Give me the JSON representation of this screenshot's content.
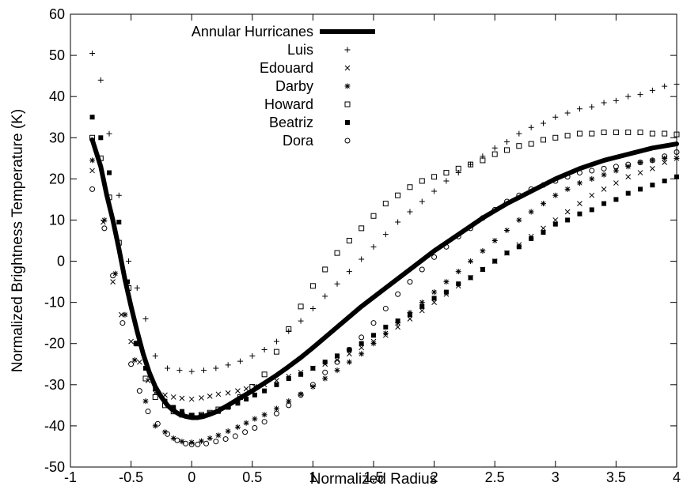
{
  "chart_data": {
    "type": "scatter",
    "title": "",
    "xlabel": "Normalized Radius",
    "ylabel": "Normalized Brightness Temperature (K)",
    "xlim": [
      -1,
      4
    ],
    "ylim": [
      -50,
      60
    ],
    "xticks": [
      -1,
      -0.5,
      0,
      0.5,
      1,
      1.5,
      2,
      2.5,
      3,
      3.5,
      4
    ],
    "yticks": [
      -50,
      -40,
      -30,
      -20,
      -10,
      0,
      10,
      20,
      30,
      40,
      50,
      60
    ],
    "legend_position": "top-center",
    "colors": {
      "ink": "#000000"
    },
    "series": [
      {
        "name": "Annular Hurricanes",
        "marker": "line",
        "x": [
          -0.82,
          -0.75,
          -0.7,
          -0.65,
          -0.6,
          -0.55,
          -0.5,
          -0.45,
          -0.4,
          -0.35,
          -0.3,
          -0.25,
          -0.2,
          -0.15,
          -0.1,
          -0.05,
          0,
          0.05,
          0.1,
          0.15,
          0.2,
          0.3,
          0.4,
          0.5,
          0.6,
          0.7,
          0.8,
          0.9,
          1.0,
          1.2,
          1.4,
          1.6,
          1.8,
          2.0,
          2.2,
          2.4,
          2.6,
          2.8,
          3.0,
          3.2,
          3.4,
          3.6,
          3.8,
          4.0
        ],
        "y": [
          29.5,
          23,
          16,
          10,
          3,
          -4.5,
          -11,
          -17,
          -22.5,
          -27,
          -30.5,
          -33,
          -35,
          -36.3,
          -37.2,
          -37.7,
          -38,
          -38,
          -37.7,
          -37.2,
          -36.6,
          -35,
          -33.2,
          -31.5,
          -29.6,
          -27.7,
          -25.6,
          -23.4,
          -21,
          -16,
          -11,
          -6.5,
          -2,
          2.5,
          6.5,
          10.5,
          14,
          17,
          20,
          22.5,
          24.5,
          26,
          27.5,
          28.5
        ]
      },
      {
        "name": "Luis",
        "marker": "plus",
        "x": [
          -0.82,
          -0.75,
          -0.68,
          -0.6,
          -0.52,
          -0.45,
          -0.38,
          -0.3,
          -0.2,
          -0.1,
          0,
          0.1,
          0.2,
          0.3,
          0.4,
          0.5,
          0.6,
          0.7,
          0.8,
          0.9,
          1.0,
          1.1,
          1.2,
          1.3,
          1.4,
          1.5,
          1.6,
          1.7,
          1.8,
          1.9,
          2.0,
          2.1,
          2.2,
          2.3,
          2.4,
          2.5,
          2.6,
          2.7,
          2.8,
          2.9,
          3.0,
          3.1,
          3.2,
          3.3,
          3.4,
          3.5,
          3.6,
          3.7,
          3.8,
          3.9,
          4.0
        ],
        "y": [
          50.5,
          44,
          31,
          16,
          0,
          -6.5,
          -14,
          -23,
          -26,
          -26.5,
          -26.8,
          -26.5,
          -26,
          -25.2,
          -24.3,
          -23,
          -21.5,
          -19.5,
          -17,
          -14.5,
          -11.5,
          -8.5,
          -5.5,
          -2.5,
          0.5,
          3.5,
          6.5,
          9.5,
          12,
          14.5,
          17,
          19.5,
          21.5,
          23.5,
          25.5,
          27.5,
          29,
          31,
          32.5,
          33.5,
          35,
          36,
          37,
          37.5,
          38.5,
          39,
          40,
          40.5,
          41.5,
          42.5,
          43
        ]
      },
      {
        "name": "Edouard",
        "marker": "cross",
        "x": [
          -0.82,
          -0.73,
          -0.65,
          -0.58,
          -0.5,
          -0.43,
          -0.36,
          -0.3,
          -0.22,
          -0.15,
          -0.08,
          0,
          0.08,
          0.15,
          0.22,
          0.3,
          0.38,
          0.45,
          0.52,
          0.6,
          0.7,
          0.8,
          0.9,
          1.0,
          1.1,
          1.2,
          1.3,
          1.4,
          1.5,
          1.6,
          1.7,
          1.8,
          1.9,
          2.0,
          2.1,
          2.2,
          2.3,
          2.4,
          2.5,
          2.6,
          2.7,
          2.8,
          2.9,
          3.0,
          3.1,
          3.2,
          3.3,
          3.4,
          3.5,
          3.6,
          3.7,
          3.8,
          3.9,
          4.0
        ],
        "y": [
          22,
          9.5,
          -5,
          -13,
          -19.5,
          -24.5,
          -29,
          -32,
          -32.5,
          -33,
          -33.3,
          -33.5,
          -33.2,
          -32.8,
          -32.3,
          -32,
          -31.5,
          -31,
          -30.5,
          -30,
          -29,
          -28,
          -27,
          -26,
          -25,
          -24,
          -22.5,
          -21,
          -19.5,
          -18,
          -16,
          -14,
          -12,
          -10,
          -8,
          -6,
          -4,
          -2,
          0,
          2,
          4,
          6,
          8,
          10,
          12,
          14,
          16,
          17.5,
          19,
          20.5,
          21.5,
          22.5,
          24,
          25
        ]
      },
      {
        "name": "Darby",
        "marker": "star",
        "x": [
          -0.82,
          -0.72,
          -0.63,
          -0.55,
          -0.47,
          -0.38,
          -0.3,
          -0.22,
          -0.15,
          -0.08,
          0,
          0.08,
          0.15,
          0.22,
          0.3,
          0.38,
          0.45,
          0.52,
          0.6,
          0.7,
          0.8,
          0.9,
          1.0,
          1.1,
          1.2,
          1.3,
          1.4,
          1.5,
          1.6,
          1.7,
          1.8,
          1.9,
          2.0,
          2.1,
          2.2,
          2.3,
          2.4,
          2.5,
          2.6,
          2.7,
          2.8,
          2.9,
          3.0,
          3.1,
          3.2,
          3.3,
          3.4,
          3.5,
          3.6,
          3.7,
          3.8,
          3.9,
          4.0
        ],
        "y": [
          24.5,
          10,
          -3,
          -13,
          -24,
          -34,
          -40,
          -41.5,
          -43,
          -43.8,
          -44,
          -43.7,
          -43,
          -42.3,
          -41.3,
          -40.3,
          -39.3,
          -38.3,
          -37.3,
          -35.8,
          -34,
          -32.3,
          -30.5,
          -28.5,
          -26.5,
          -24.5,
          -22.5,
          -20,
          -17.5,
          -15,
          -12.5,
          -10,
          -7.5,
          -5,
          -2.5,
          0,
          2.5,
          5,
          7.5,
          10,
          12,
          14,
          16,
          17.5,
          19,
          20,
          21,
          22,
          23,
          24,
          24.5,
          25,
          25
        ]
      },
      {
        "name": "Howard",
        "marker": "square",
        "x": [
          -0.82,
          -0.75,
          -0.68,
          -0.6,
          -0.52,
          -0.45,
          -0.38,
          -0.3,
          -0.22,
          -0.15,
          -0.08,
          0,
          0.08,
          0.15,
          0.22,
          0.3,
          0.4,
          0.5,
          0.6,
          0.7,
          0.8,
          0.9,
          1.0,
          1.1,
          1.2,
          1.3,
          1.4,
          1.5,
          1.6,
          1.7,
          1.8,
          1.9,
          2.0,
          2.1,
          2.2,
          2.3,
          2.4,
          2.5,
          2.6,
          2.7,
          2.8,
          2.9,
          3.0,
          3.1,
          3.2,
          3.3,
          3.4,
          3.5,
          3.6,
          3.7,
          3.8,
          3.9,
          4.0
        ],
        "y": [
          30,
          25,
          15.5,
          4.5,
          -6.5,
          -20,
          -28.5,
          -33,
          -35,
          -36.5,
          -37.3,
          -37.5,
          -37.3,
          -36.8,
          -36,
          -35.3,
          -33,
          -30.5,
          -27.5,
          -22,
          -16.5,
          -11,
          -6,
          -2,
          2,
          5,
          8,
          11,
          14,
          16,
          18,
          19.5,
          20.5,
          21.5,
          22.5,
          23.5,
          24.5,
          26,
          27,
          28,
          28.5,
          29.5,
          30,
          30.5,
          31,
          31,
          31.3,
          31.3,
          31.3,
          31.3,
          31,
          31,
          30.8
        ]
      },
      {
        "name": "Beatriz",
        "marker": "filled-square",
        "x": [
          -0.82,
          -0.75,
          -0.68,
          -0.6,
          -0.53,
          -0.46,
          -0.38,
          -0.3,
          -0.22,
          -0.15,
          -0.08,
          0,
          0.08,
          0.15,
          0.22,
          0.3,
          0.38,
          0.45,
          0.52,
          0.6,
          0.7,
          0.8,
          0.9,
          1.0,
          1.1,
          1.2,
          1.3,
          1.4,
          1.5,
          1.6,
          1.7,
          1.8,
          1.9,
          2.0,
          2.1,
          2.2,
          2.3,
          2.4,
          2.5,
          2.6,
          2.7,
          2.8,
          2.9,
          3.0,
          3.1,
          3.2,
          3.3,
          3.4,
          3.5,
          3.6,
          3.7,
          3.8,
          3.9,
          4.0
        ],
        "y": [
          35,
          30,
          21.5,
          9.5,
          -5,
          -20,
          -26,
          -31,
          -34,
          -35.5,
          -36.5,
          -37.5,
          -37.5,
          -37,
          -36.5,
          -35.5,
          -34.5,
          -33.5,
          -32.5,
          -31.5,
          -30,
          -28.5,
          -27.5,
          -26,
          -24.5,
          -23,
          -21.5,
          -20,
          -18,
          -16,
          -14.5,
          -13,
          -11,
          -9,
          -7.5,
          -5.5,
          -4,
          -2,
          0,
          2,
          3.5,
          5.5,
          7,
          9,
          10,
          11.5,
          12.5,
          14,
          15,
          16.5,
          17.5,
          18.5,
          19.5,
          20.5
        ]
      },
      {
        "name": "Dora",
        "marker": "circle",
        "x": [
          -0.82,
          -0.72,
          -0.65,
          -0.57,
          -0.5,
          -0.43,
          -0.36,
          -0.28,
          -0.2,
          -0.12,
          -0.05,
          0,
          0.05,
          0.12,
          0.2,
          0.28,
          0.36,
          0.44,
          0.52,
          0.6,
          0.7,
          0.8,
          0.9,
          1.0,
          1.1,
          1.2,
          1.3,
          1.4,
          1.5,
          1.6,
          1.7,
          1.8,
          1.9,
          2.0,
          2.1,
          2.2,
          2.3,
          2.4,
          2.5,
          2.6,
          2.7,
          2.8,
          2.9,
          3.0,
          3.1,
          3.2,
          3.3,
          3.4,
          3.5,
          3.6,
          3.7,
          3.8,
          3.9,
          4.0
        ],
        "y": [
          17.5,
          8,
          -3.5,
          -15,
          -25,
          -31.5,
          -36.5,
          -39.5,
          -42,
          -43.5,
          -44.3,
          -44.5,
          -44.5,
          -44.3,
          -43.8,
          -43.2,
          -42.5,
          -41.5,
          -40.5,
          -39,
          -37,
          -35,
          -32.5,
          -30,
          -27,
          -24.5,
          -21.5,
          -18.5,
          -15,
          -11.5,
          -8,
          -5,
          -2,
          1,
          3.5,
          6,
          8,
          10.5,
          12.5,
          14.5,
          16,
          17.5,
          18.5,
          19.5,
          20.5,
          21.5,
          22,
          22.5,
          23,
          23.5,
          24,
          24.5,
          25.5,
          26.5
        ]
      }
    ]
  }
}
